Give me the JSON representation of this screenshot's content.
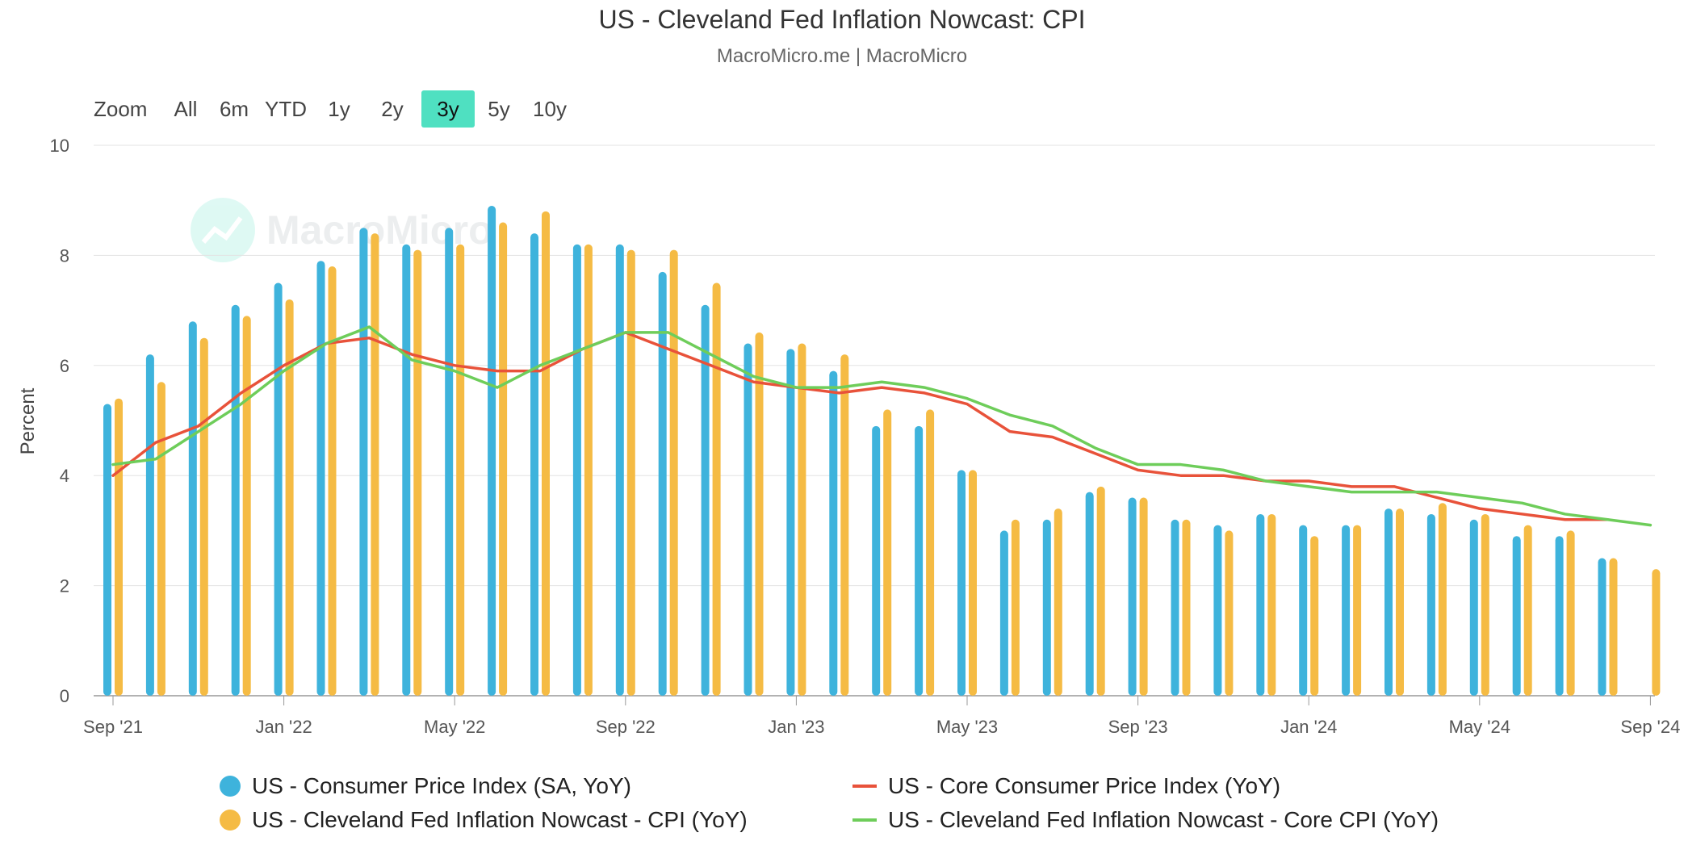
{
  "title": "US - Cleveland Fed Inflation Nowcast: CPI",
  "subtitle": "MacroMicro.me | MacroMicro",
  "watermark": "MacroMicro",
  "zoom": {
    "label": "Zoom",
    "buttons": [
      "All",
      "6m",
      "YTD",
      "1y",
      "2y",
      "3y",
      "5y",
      "10y"
    ],
    "active": "3y",
    "active_color": "#4fe0c1"
  },
  "legend": [
    {
      "label": "US - Consumer Price Index (SA, YoY)",
      "symbol": "dot",
      "color": "#3eb3dc"
    },
    {
      "label": "US - Core Consumer Price Index (YoY)",
      "symbol": "line",
      "color": "#e8523a"
    },
    {
      "label": "US - Cleveland Fed Inflation Nowcast - CPI (YoY)",
      "symbol": "dot",
      "color": "#f5bb44"
    },
    {
      "label": "US - Cleveland Fed Inflation Nowcast - Core CPI (YoY)",
      "symbol": "line",
      "color": "#6ecd5a"
    }
  ],
  "chart_data": {
    "type": "bar",
    "title": "US - Cleveland Fed Inflation Nowcast: CPI",
    "ylabel": "Percent",
    "ylim": [
      0,
      10
    ],
    "yticks": [
      0,
      2,
      4,
      6,
      8,
      10
    ],
    "grid": true,
    "legend_position": "bottom",
    "x_tick_labels": [
      "Sep '21",
      "Jan '22",
      "May '22",
      "Sep '22",
      "Jan '23",
      "May '23",
      "Sep '23",
      "Jan '24",
      "May '24",
      "Sep '24"
    ],
    "categories": [
      "2021-09",
      "2021-10",
      "2021-11",
      "2021-12",
      "2022-01",
      "2022-02",
      "2022-03",
      "2022-04",
      "2022-05",
      "2022-06",
      "2022-07",
      "2022-08",
      "2022-09",
      "2022-10",
      "2022-11",
      "2022-12",
      "2023-01",
      "2023-02",
      "2023-03",
      "2023-04",
      "2023-05",
      "2023-06",
      "2023-07",
      "2023-08",
      "2023-09",
      "2023-10",
      "2023-11",
      "2023-12",
      "2024-01",
      "2024-02",
      "2024-03",
      "2024-04",
      "2024-05",
      "2024-06",
      "2024-07",
      "2024-08",
      "2024-09"
    ],
    "series": [
      {
        "name": "US - Consumer Price Index (SA, YoY)",
        "type": "bar",
        "color": "#3eb3dc",
        "values": [
          5.3,
          6.2,
          6.8,
          7.1,
          7.5,
          7.9,
          8.5,
          8.2,
          8.5,
          8.9,
          8.4,
          8.2,
          8.2,
          7.7,
          7.1,
          6.4,
          6.3,
          5.9,
          4.9,
          4.9,
          4.1,
          3.0,
          3.2,
          3.7,
          3.6,
          3.2,
          3.1,
          3.3,
          3.1,
          3.1,
          3.4,
          3.3,
          3.2,
          2.9,
          2.9,
          2.5,
          null
        ]
      },
      {
        "name": "US - Cleveland Fed Inflation Nowcast - CPI (YoY)",
        "type": "bar",
        "color": "#f5bb44",
        "values": [
          5.4,
          5.7,
          6.5,
          6.9,
          7.2,
          7.8,
          8.4,
          8.1,
          8.2,
          8.6,
          8.8,
          8.2,
          8.1,
          8.1,
          7.5,
          6.6,
          6.4,
          6.2,
          5.2,
          5.2,
          4.1,
          3.2,
          3.4,
          3.8,
          3.6,
          3.2,
          3.0,
          3.3,
          2.9,
          3.1,
          3.4,
          3.5,
          3.3,
          3.1,
          3.0,
          2.5,
          2.3
        ]
      },
      {
        "name": "US - Core Consumer Price Index (YoY)",
        "type": "line",
        "color": "#e8523a",
        "values": [
          4.0,
          4.6,
          4.9,
          5.5,
          6.0,
          6.4,
          6.5,
          6.2,
          6.0,
          5.9,
          5.9,
          6.3,
          6.6,
          6.3,
          6.0,
          5.7,
          5.6,
          5.5,
          5.6,
          5.5,
          5.3,
          4.8,
          4.7,
          4.4,
          4.1,
          4.0,
          4.0,
          3.9,
          3.9,
          3.8,
          3.8,
          3.6,
          3.4,
          3.3,
          3.2,
          3.2,
          null
        ]
      },
      {
        "name": "US - Cleveland Fed Inflation Nowcast - Core CPI (YoY)",
        "type": "line",
        "color": "#6ecd5a",
        "values": [
          4.2,
          4.3,
          4.8,
          5.3,
          5.9,
          6.4,
          6.7,
          6.1,
          5.9,
          5.6,
          6.0,
          6.3,
          6.6,
          6.6,
          6.2,
          5.8,
          5.6,
          5.6,
          5.7,
          5.6,
          5.4,
          5.1,
          4.9,
          4.5,
          4.2,
          4.2,
          4.1,
          3.9,
          3.8,
          3.7,
          3.7,
          3.7,
          3.6,
          3.5,
          3.3,
          3.2,
          3.1
        ]
      }
    ]
  }
}
